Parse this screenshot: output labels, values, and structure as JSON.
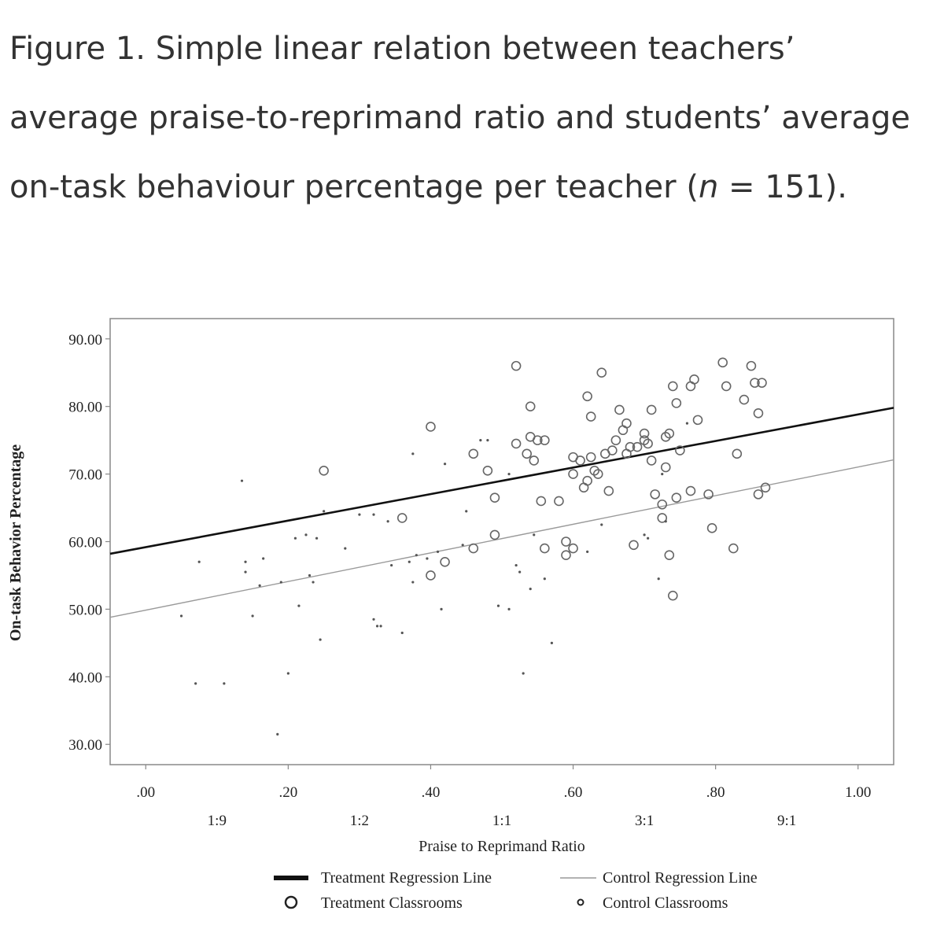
{
  "caption": {
    "text": "Figure 1. Simple linear relation between teachers’ average praise-to-reprimand ratio and students’ average on-task behaviour percentage per teacher",
    "n_open": "(",
    "n_symbol": "n",
    "n_rest": " = 151)."
  },
  "chart_data": {
    "type": "scatter",
    "title": "",
    "xlabel": "Praise to Reprimand Ratio",
    "ylabel": "On-task Behavior Percentage",
    "xlim": [
      -0.05,
      1.05
    ],
    "ylim": [
      27,
      93
    ],
    "xticks": [
      0.0,
      0.2,
      0.4,
      0.6,
      0.8,
      1.0
    ],
    "xtick_labels": [
      ".00",
      ".20",
      ".40",
      ".60",
      ".80",
      "1.00"
    ],
    "ratio_ticks": [
      {
        "x": 0.1,
        "label": "1:9"
      },
      {
        "x": 0.3,
        "label": "1:2"
      },
      {
        "x": 0.5,
        "label": "1:1"
      },
      {
        "x": 0.7,
        "label": "3:1"
      },
      {
        "x": 0.9,
        "label": "9:1"
      }
    ],
    "yticks": [
      30,
      40,
      50,
      60,
      70,
      80,
      90
    ],
    "ytick_labels": [
      "30.00",
      "40.00",
      "50.00",
      "60.00",
      "70.00",
      "80.00",
      "90.00"
    ],
    "grid": false,
    "legend_position": "bottom",
    "series": [
      {
        "name": "Treatment Classrooms",
        "kind": "points",
        "marker": "open-circle",
        "color": "#666666",
        "points": [
          [
            0.25,
            70.5
          ],
          [
            0.36,
            63.5
          ],
          [
            0.4,
            77
          ],
          [
            0.4,
            55
          ],
          [
            0.42,
            57
          ],
          [
            0.46,
            73
          ],
          [
            0.46,
            59
          ],
          [
            0.48,
            70.5
          ],
          [
            0.49,
            66.5
          ],
          [
            0.49,
            61
          ],
          [
            0.52,
            86
          ],
          [
            0.52,
            74.5
          ],
          [
            0.54,
            80
          ],
          [
            0.54,
            75.5
          ],
          [
            0.535,
            73
          ],
          [
            0.545,
            72
          ],
          [
            0.55,
            75
          ],
          [
            0.56,
            75
          ],
          [
            0.555,
            66
          ],
          [
            0.56,
            59
          ],
          [
            0.58,
            66
          ],
          [
            0.59,
            60
          ],
          [
            0.59,
            58
          ],
          [
            0.6,
            70
          ],
          [
            0.6,
            72.5
          ],
          [
            0.6,
            59
          ],
          [
            0.61,
            72
          ],
          [
            0.615,
            68
          ],
          [
            0.62,
            69
          ],
          [
            0.62,
            81.5
          ],
          [
            0.625,
            78.5
          ],
          [
            0.625,
            72.5
          ],
          [
            0.63,
            70.5
          ],
          [
            0.635,
            70
          ],
          [
            0.64,
            85
          ],
          [
            0.645,
            73
          ],
          [
            0.65,
            67.5
          ],
          [
            0.655,
            73.5
          ],
          [
            0.66,
            75
          ],
          [
            0.665,
            79.5
          ],
          [
            0.67,
            76.5
          ],
          [
            0.675,
            77.5
          ],
          [
            0.675,
            73
          ],
          [
            0.68,
            74
          ],
          [
            0.69,
            74
          ],
          [
            0.685,
            59.5
          ],
          [
            0.7,
            75
          ],
          [
            0.7,
            76
          ],
          [
            0.705,
            74.5
          ],
          [
            0.71,
            79.5
          ],
          [
            0.71,
            72
          ],
          [
            0.715,
            67
          ],
          [
            0.725,
            65.5
          ],
          [
            0.725,
            63.5
          ],
          [
            0.73,
            71
          ],
          [
            0.73,
            75.5
          ],
          [
            0.735,
            58
          ],
          [
            0.735,
            76
          ],
          [
            0.74,
            83
          ],
          [
            0.74,
            52
          ],
          [
            0.745,
            80.5
          ],
          [
            0.745,
            66.5
          ],
          [
            0.75,
            73.5
          ],
          [
            0.765,
            83
          ],
          [
            0.765,
            67.5
          ],
          [
            0.77,
            84
          ],
          [
            0.775,
            78
          ],
          [
            0.79,
            67
          ],
          [
            0.795,
            62
          ],
          [
            0.81,
            86.5
          ],
          [
            0.815,
            83
          ],
          [
            0.825,
            59
          ],
          [
            0.83,
            73
          ],
          [
            0.84,
            81
          ],
          [
            0.85,
            86
          ],
          [
            0.855,
            83.5
          ],
          [
            0.86,
            79
          ],
          [
            0.86,
            67
          ],
          [
            0.865,
            83.5
          ],
          [
            0.87,
            68
          ]
        ]
      },
      {
        "name": "Control Classrooms",
        "kind": "points",
        "marker": "dot",
        "color": "#555555",
        "points": [
          [
            0.05,
            49
          ],
          [
            0.07,
            39
          ],
          [
            0.075,
            57
          ],
          [
            0.11,
            39
          ],
          [
            0.135,
            69
          ],
          [
            0.14,
            57
          ],
          [
            0.14,
            55.5
          ],
          [
            0.15,
            49
          ],
          [
            0.16,
            53.5
          ],
          [
            0.165,
            57.5
          ],
          [
            0.185,
            31.5
          ],
          [
            0.19,
            54
          ],
          [
            0.2,
            40.5
          ],
          [
            0.21,
            60.5
          ],
          [
            0.215,
            50.5
          ],
          [
            0.225,
            61
          ],
          [
            0.23,
            55
          ],
          [
            0.235,
            54
          ],
          [
            0.24,
            60.5
          ],
          [
            0.245,
            45.5
          ],
          [
            0.25,
            64.5
          ],
          [
            0.28,
            59
          ],
          [
            0.3,
            64
          ],
          [
            0.32,
            64
          ],
          [
            0.32,
            48.5
          ],
          [
            0.325,
            47.5
          ],
          [
            0.33,
            47.5
          ],
          [
            0.34,
            63
          ],
          [
            0.345,
            56.5
          ],
          [
            0.36,
            46.5
          ],
          [
            0.37,
            57
          ],
          [
            0.375,
            73
          ],
          [
            0.375,
            54
          ],
          [
            0.38,
            58
          ],
          [
            0.395,
            57.5
          ],
          [
            0.41,
            58.5
          ],
          [
            0.415,
            50
          ],
          [
            0.42,
            71.5
          ],
          [
            0.445,
            59.5
          ],
          [
            0.45,
            64.5
          ],
          [
            0.47,
            75
          ],
          [
            0.48,
            75
          ],
          [
            0.495,
            50.5
          ],
          [
            0.51,
            50
          ],
          [
            0.51,
            70
          ],
          [
            0.52,
            56.5
          ],
          [
            0.525,
            55.5
          ],
          [
            0.53,
            40.5
          ],
          [
            0.54,
            53
          ],
          [
            0.545,
            61
          ],
          [
            0.56,
            54.5
          ],
          [
            0.57,
            45
          ],
          [
            0.62,
            58.5
          ],
          [
            0.64,
            62.5
          ],
          [
            0.7,
            61
          ],
          [
            0.705,
            60.5
          ],
          [
            0.72,
            54.5
          ],
          [
            0.725,
            70
          ],
          [
            0.73,
            63
          ],
          [
            0.76,
            77.5
          ]
        ]
      },
      {
        "name": "Treatment Regression Line",
        "kind": "line",
        "color": "#111111",
        "points": [
          [
            -0.05,
            58.2
          ],
          [
            1.05,
            79.8
          ]
        ]
      },
      {
        "name": "Control Regression Line",
        "kind": "line",
        "color": "#9a9a9a",
        "points": [
          [
            -0.05,
            48.8
          ],
          [
            1.05,
            72.1
          ]
        ]
      }
    ]
  },
  "legend": {
    "treatment_line": "Treatment Regression Line",
    "control_line": "Control Regression Line",
    "treatment_points": "Treatment Classrooms",
    "control_points": "Control Classrooms"
  }
}
